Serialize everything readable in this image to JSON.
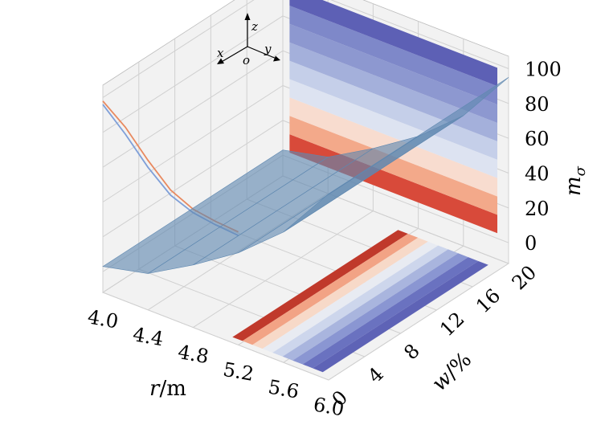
{
  "chart_data": {
    "type": "surface3d",
    "axes": {
      "x": {
        "label_var": "r",
        "label_unit": "/m",
        "range": [
          4.0,
          6.0
        ],
        "ticks": [
          "4.0",
          "4.4",
          "4.8",
          "5.2",
          "5.6",
          "6.0"
        ]
      },
      "y": {
        "label_var": "w",
        "label_unit": "/%",
        "range": [
          0,
          20
        ],
        "ticks": [
          "0",
          "4",
          "8",
          "12",
          "16",
          "20"
        ]
      },
      "z": {
        "label_var": "m",
        "label_sub": "σ",
        "range": [
          0,
          100
        ],
        "ticks": [
          "0",
          "20",
          "40",
          "60",
          "80",
          "100"
        ]
      }
    },
    "orientation_indicator": {
      "x": "x",
      "y": "y",
      "z": "z",
      "origin": "o"
    },
    "surface": {
      "r": [
        4.0,
        4.4,
        4.8,
        5.2,
        5.6,
        6.0
      ],
      "w": [
        0,
        20
      ],
      "m_sigma": [
        [
          3,
          3
        ],
        [
          9,
          9
        ],
        [
          24,
          24
        ],
        [
          41,
          41
        ],
        [
          63,
          63
        ],
        [
          95,
          95
        ]
      ]
    },
    "edge_curves": {
      "w": 0,
      "r": [
        4.0,
        4.2,
        4.4,
        4.6,
        4.8,
        5.0,
        5.2
      ],
      "series": [
        {
          "color": "#e8895f",
          "m_sigma": [
            98,
            88,
            74,
            62,
            56,
            54,
            53
          ]
        },
        {
          "color": "#7f9fd8",
          "m_sigma": [
            96,
            84,
            70,
            59,
            54,
            52,
            51
          ]
        }
      ]
    },
    "projections": {
      "floor_z0_bands_along_r": [
        "#c0392b",
        "#f2a385",
        "#f7d9c8",
        "#e8ebf2",
        "#cdd6ec",
        "#a9b5de",
        "#8a96d2",
        "#6a72c0",
        "#5e63b6"
      ],
      "wall_r6_bands_along_z": [
        "#d84a3a",
        "#f3a98a",
        "#f8dccf",
        "#dde3f1",
        "#c5cfe9",
        "#a4b0db",
        "#8d98d0",
        "#7e88c9",
        "#5d60b5"
      ]
    },
    "colors": {
      "surface": "#5f88b0",
      "pane": "#f2f2f2",
      "grid": "#d0d0d0"
    },
    "grid": true
  }
}
